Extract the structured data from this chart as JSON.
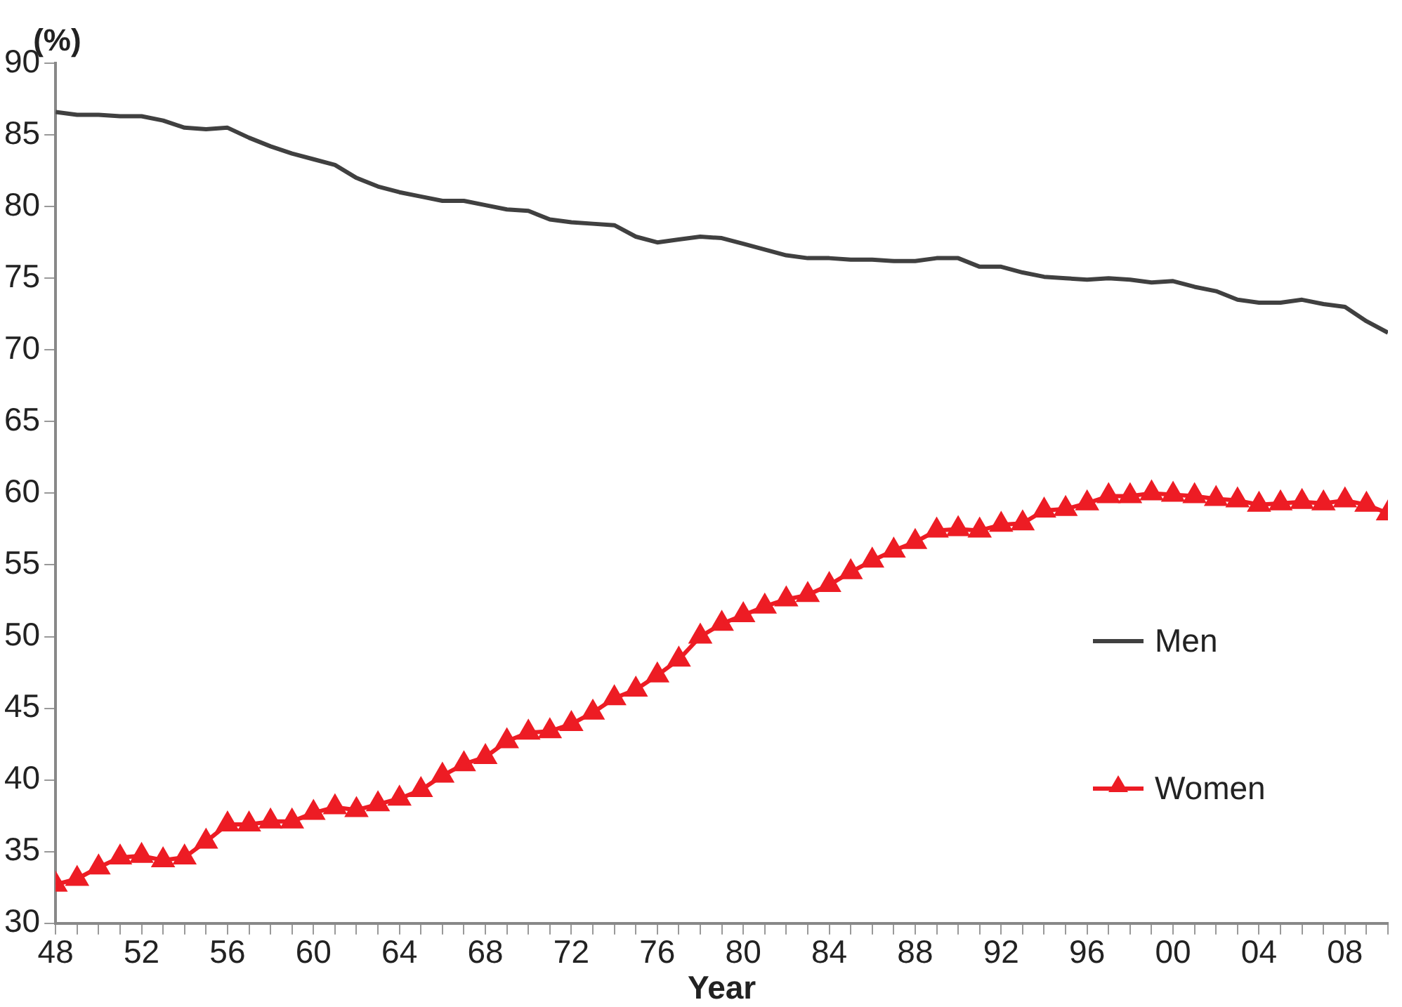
{
  "chart_data": {
    "type": "line",
    "xlabel": "Year",
    "ylabel": "(%)",
    "x": [
      1948,
      1949,
      1950,
      1951,
      1952,
      1953,
      1954,
      1955,
      1956,
      1957,
      1958,
      1959,
      1960,
      1961,
      1962,
      1963,
      1964,
      1965,
      1966,
      1967,
      1968,
      1969,
      1970,
      1971,
      1972,
      1973,
      1974,
      1975,
      1976,
      1977,
      1978,
      1979,
      1980,
      1981,
      1982,
      1983,
      1984,
      1985,
      1986,
      1987,
      1988,
      1989,
      1990,
      1991,
      1992,
      1993,
      1994,
      1995,
      1996,
      1997,
      1998,
      1999,
      2000,
      2001,
      2002,
      2003,
      2004,
      2005,
      2006,
      2007,
      2008,
      2009,
      2010
    ],
    "series": [
      {
        "name": "Men",
        "color": "#404040",
        "marker": "none",
        "values": [
          86.6,
          86.4,
          86.4,
          86.3,
          86.3,
          86.0,
          85.5,
          85.4,
          85.5,
          84.8,
          84.2,
          83.7,
          83.3,
          82.9,
          82.0,
          81.4,
          81.0,
          80.7,
          80.4,
          80.4,
          80.1,
          79.8,
          79.7,
          79.1,
          78.9,
          78.8,
          78.7,
          77.9,
          77.5,
          77.7,
          77.9,
          77.8,
          77.4,
          77.0,
          76.6,
          76.4,
          76.4,
          76.3,
          76.3,
          76.2,
          76.2,
          76.4,
          76.4,
          75.8,
          75.8,
          75.4,
          75.1,
          75.0,
          74.9,
          75.0,
          74.9,
          74.7,
          74.8,
          74.4,
          74.1,
          73.5,
          73.3,
          73.3,
          73.5,
          73.2,
          73.0,
          72.0,
          71.2
        ]
      },
      {
        "name": "Women",
        "color": "#ed1c24",
        "marker": "triangle",
        "values": [
          32.7,
          33.1,
          33.9,
          34.6,
          34.7,
          34.4,
          34.6,
          35.7,
          36.9,
          36.9,
          37.1,
          37.1,
          37.7,
          38.1,
          37.9,
          38.3,
          38.7,
          39.3,
          40.3,
          41.1,
          41.6,
          42.7,
          43.3,
          43.4,
          43.9,
          44.7,
          45.7,
          46.3,
          47.3,
          48.4,
          50.0,
          50.9,
          51.5,
          52.1,
          52.6,
          52.9,
          53.6,
          54.5,
          55.3,
          56.0,
          56.6,
          57.4,
          57.5,
          57.4,
          57.8,
          57.9,
          58.8,
          58.9,
          59.3,
          59.8,
          59.8,
          60.0,
          59.9,
          59.8,
          59.6,
          59.5,
          59.2,
          59.3,
          59.4,
          59.3,
          59.5,
          59.2,
          58.6
        ]
      }
    ],
    "xlim": [
      1948,
      2010
    ],
    "xticks": [
      {
        "value": 1948,
        "label": "48"
      },
      {
        "value": 1949,
        "label": null
      },
      {
        "value": 1950,
        "label": null
      },
      {
        "value": 1951,
        "label": null
      },
      {
        "value": 1952,
        "label": "52"
      },
      {
        "value": 1953,
        "label": null
      },
      {
        "value": 1954,
        "label": null
      },
      {
        "value": 1955,
        "label": null
      },
      {
        "value": 1956,
        "label": "56"
      },
      {
        "value": 1957,
        "label": null
      },
      {
        "value": 1958,
        "label": null
      },
      {
        "value": 1959,
        "label": null
      },
      {
        "value": 1960,
        "label": "60"
      },
      {
        "value": 1961,
        "label": null
      },
      {
        "value": 1962,
        "label": null
      },
      {
        "value": 1963,
        "label": null
      },
      {
        "value": 1964,
        "label": "64"
      },
      {
        "value": 1965,
        "label": null
      },
      {
        "value": 1966,
        "label": null
      },
      {
        "value": 1967,
        "label": null
      },
      {
        "value": 1968,
        "label": "68"
      },
      {
        "value": 1969,
        "label": null
      },
      {
        "value": 1970,
        "label": null
      },
      {
        "value": 1971,
        "label": null
      },
      {
        "value": 1972,
        "label": "72"
      },
      {
        "value": 1973,
        "label": null
      },
      {
        "value": 1974,
        "label": null
      },
      {
        "value": 1975,
        "label": null
      },
      {
        "value": 1976,
        "label": "76"
      },
      {
        "value": 1977,
        "label": null
      },
      {
        "value": 1978,
        "label": null
      },
      {
        "value": 1979,
        "label": null
      },
      {
        "value": 1980,
        "label": "80"
      },
      {
        "value": 1981,
        "label": null
      },
      {
        "value": 1982,
        "label": null
      },
      {
        "value": 1983,
        "label": null
      },
      {
        "value": 1984,
        "label": "84"
      },
      {
        "value": 1985,
        "label": null
      },
      {
        "value": 1986,
        "label": null
      },
      {
        "value": 1987,
        "label": null
      },
      {
        "value": 1988,
        "label": "88"
      },
      {
        "value": 1989,
        "label": null
      },
      {
        "value": 1990,
        "label": null
      },
      {
        "value": 1991,
        "label": null
      },
      {
        "value": 1992,
        "label": "92"
      },
      {
        "value": 1993,
        "label": null
      },
      {
        "value": 1994,
        "label": null
      },
      {
        "value": 1995,
        "label": null
      },
      {
        "value": 1996,
        "label": "96"
      },
      {
        "value": 1997,
        "label": null
      },
      {
        "value": 1998,
        "label": null
      },
      {
        "value": 1999,
        "label": null
      },
      {
        "value": 2000,
        "label": "00"
      },
      {
        "value": 2001,
        "label": null
      },
      {
        "value": 2002,
        "label": null
      },
      {
        "value": 2003,
        "label": null
      },
      {
        "value": 2004,
        "label": "04"
      },
      {
        "value": 2005,
        "label": null
      },
      {
        "value": 2006,
        "label": null
      },
      {
        "value": 2007,
        "label": null
      },
      {
        "value": 2008,
        "label": "08"
      },
      {
        "value": 2009,
        "label": null
      },
      {
        "value": 2010,
        "label": null
      }
    ],
    "ylim": [
      30,
      90
    ],
    "yticks": [
      30,
      35,
      40,
      45,
      50,
      55,
      60,
      65,
      70,
      75,
      80,
      85,
      90
    ],
    "grid": false,
    "legend": "right",
    "line_style": "solid"
  }
}
